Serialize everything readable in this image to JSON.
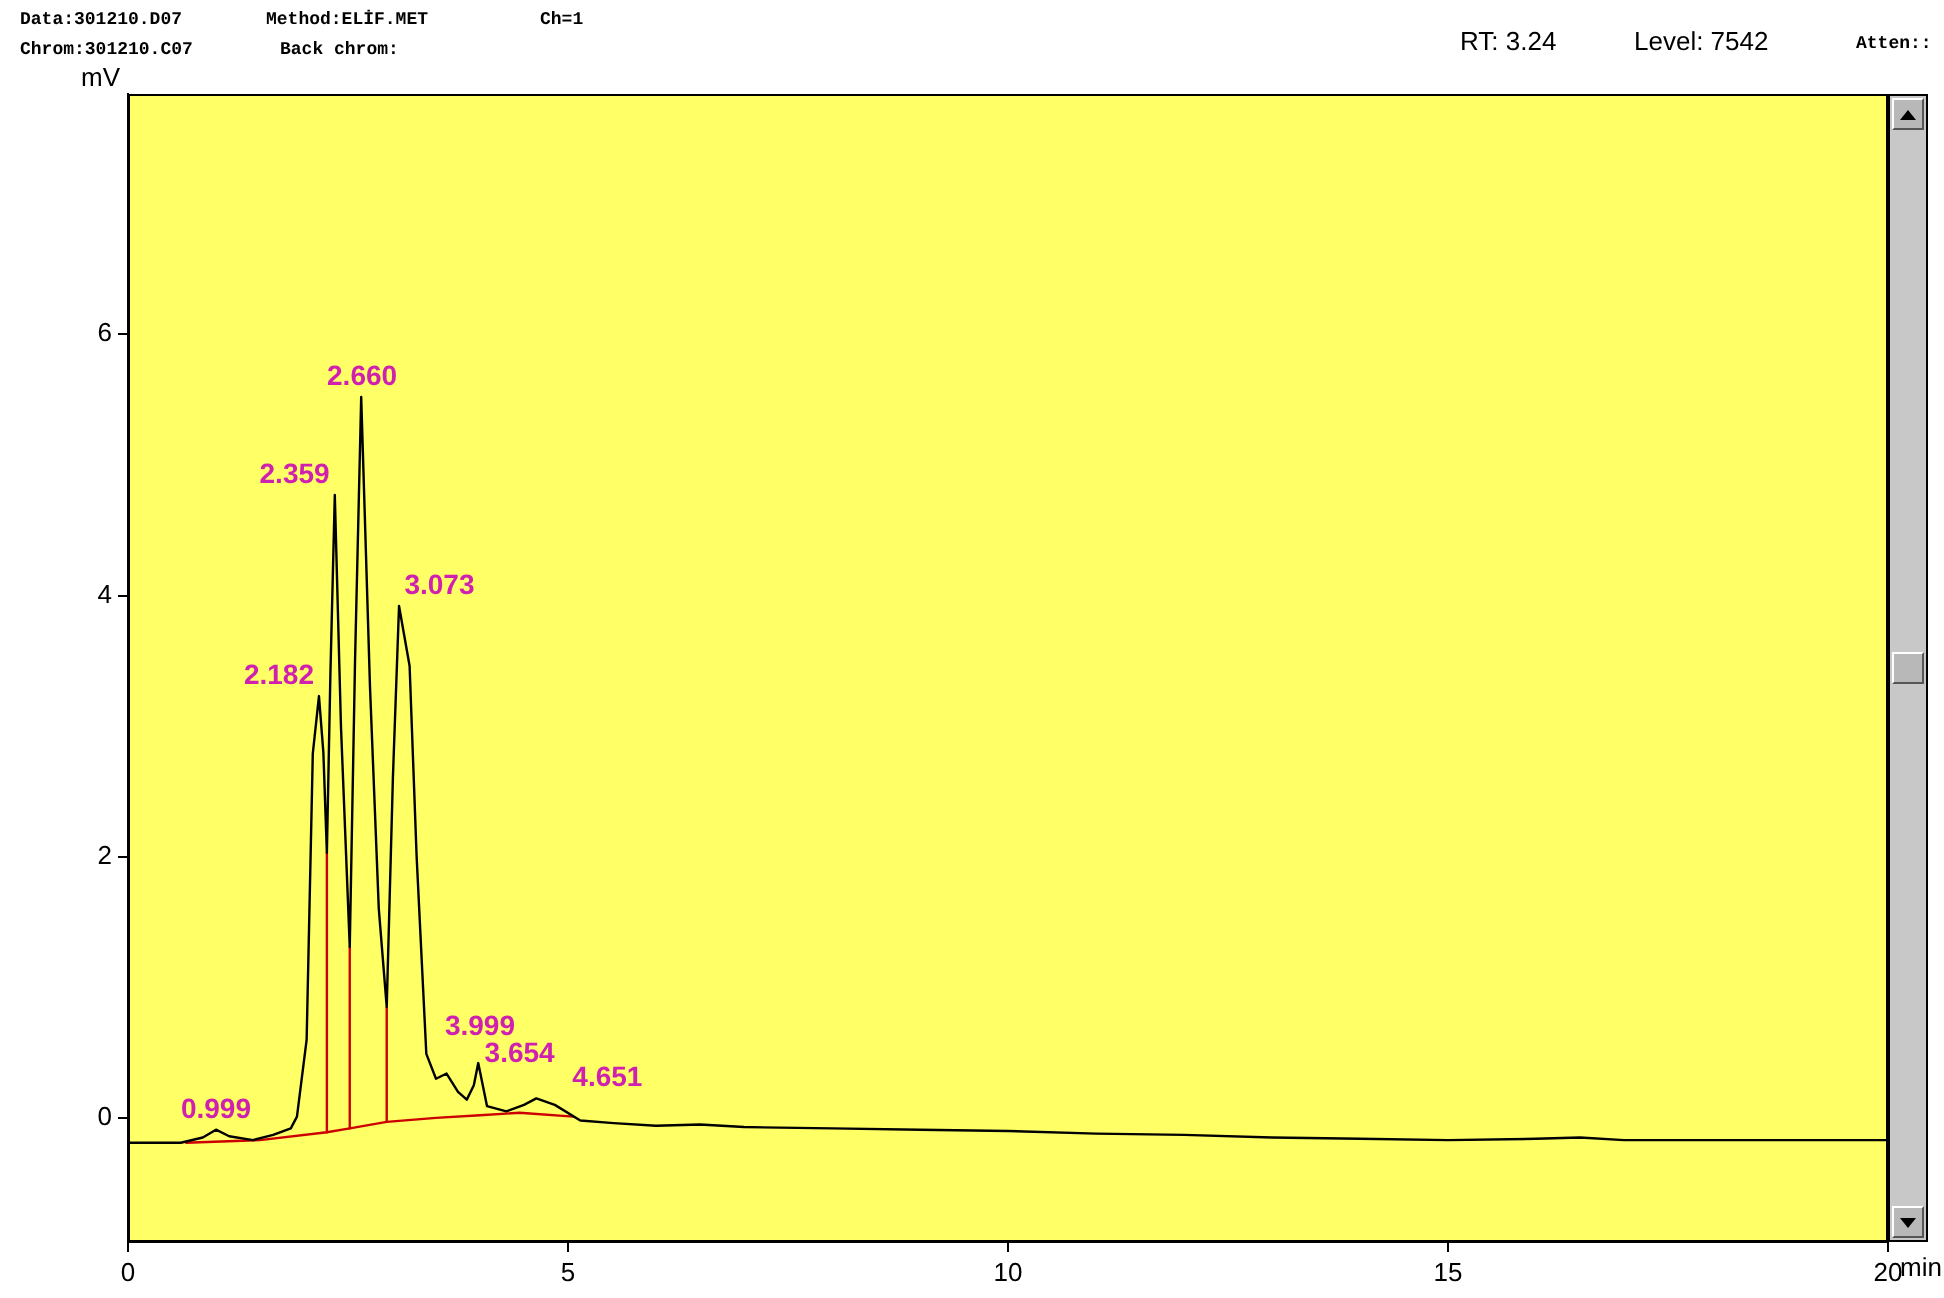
{
  "chart_data": {
    "type": "line",
    "xlabel": "min",
    "ylabel": "mV",
    "xlim": [
      0,
      20
    ],
    "ylim": [
      -0.95,
      7.84
    ],
    "xticks": [
      0,
      5,
      10,
      15,
      20
    ],
    "yticks": [
      0,
      2,
      4,
      6
    ],
    "grid": false,
    "legend": false,
    "marker": "none",
    "line_style": "solid",
    "series": [
      {
        "color": "#000000",
        "x": [
          0,
          0.6,
          0.85,
          1.0,
          1.15,
          1.42,
          1.65,
          1.85,
          1.92,
          2.03,
          2.1,
          2.17,
          2.22,
          2.26,
          2.3,
          2.35,
          2.42,
          2.52,
          2.58,
          2.65,
          2.75,
          2.85,
          2.94,
          3.01,
          3.08,
          3.2,
          3.28,
          3.39,
          3.5,
          3.62,
          3.75,
          3.85,
          3.93,
          3.98,
          4.08,
          4.3,
          4.5,
          4.64,
          4.85,
          5.14,
          5.52,
          6,
          6.5,
          7,
          8,
          9,
          10,
          11,
          12,
          13,
          14,
          15,
          16,
          16.5,
          17,
          20
        ],
        "values": [
          -0.19,
          -0.19,
          -0.15,
          -0.09,
          -0.14,
          -0.17,
          -0.13,
          -0.08,
          0.01,
          0.6,
          2.79,
          3.23,
          2.8,
          2.03,
          3.4,
          4.77,
          3.0,
          1.31,
          3.5,
          5.52,
          3.3,
          1.6,
          0.85,
          2.6,
          3.92,
          3.46,
          2.0,
          0.49,
          0.3,
          0.34,
          0.2,
          0.14,
          0.25,
          0.42,
          0.09,
          0.05,
          0.1,
          0.15,
          0.1,
          -0.02,
          -0.04,
          -0.06,
          -0.05,
          -0.07,
          -0.08,
          -0.09,
          -0.1,
          -0.12,
          -0.13,
          -0.15,
          -0.16,
          -0.17,
          -0.16,
          -0.15,
          -0.17,
          -0.17
        ]
      },
      {
        "color": "#cc0000",
        "x": [
          0.66,
          1.5,
          2.26,
          2.52,
          2.94,
          3.5,
          4.0,
          4.45,
          5.06
        ],
        "values": [
          -0.19,
          -0.17,
          -0.11,
          -0.08,
          -0.03,
          0.0,
          0.02,
          0.04,
          0.01
        ]
      },
      {
        "color": "#cc0000",
        "x": [
          2.26,
          2.26
        ],
        "values": [
          -0.11,
          2.03
        ]
      },
      {
        "color": "#cc0000",
        "x": [
          2.52,
          2.52
        ],
        "values": [
          -0.08,
          1.31
        ]
      },
      {
        "color": "#cc0000",
        "x": [
          2.94,
          2.94
        ],
        "values": [
          -0.03,
          0.85
        ]
      }
    ],
    "annotations": [
      "Data:301210.D07",
      "Method:ELİF.MET",
      "Ch=1",
      "Chrom:301210.C07",
      "Back chrom:",
      "RT: 3.24",
      "Level: 7542",
      "Atten::",
      {
        "text": "0.999",
        "x": 0.999,
        "y": -0.09
      },
      {
        "text": "2.182",
        "x": 2.182,
        "y": 3.23
      },
      {
        "text": "2.359",
        "x": 2.359,
        "y": 4.77
      },
      {
        "text": "2.660",
        "x": 2.66,
        "y": 5.52
      },
      {
        "text": "3.073",
        "x": 3.073,
        "y": 3.92
      },
      {
        "text": "3.654",
        "x": 3.654,
        "y": 0.34
      },
      {
        "text": "3.999",
        "x": 3.999,
        "y": 0.42
      },
      {
        "text": "4.651",
        "x": 4.651,
        "y": 0.15
      }
    ]
  }
}
